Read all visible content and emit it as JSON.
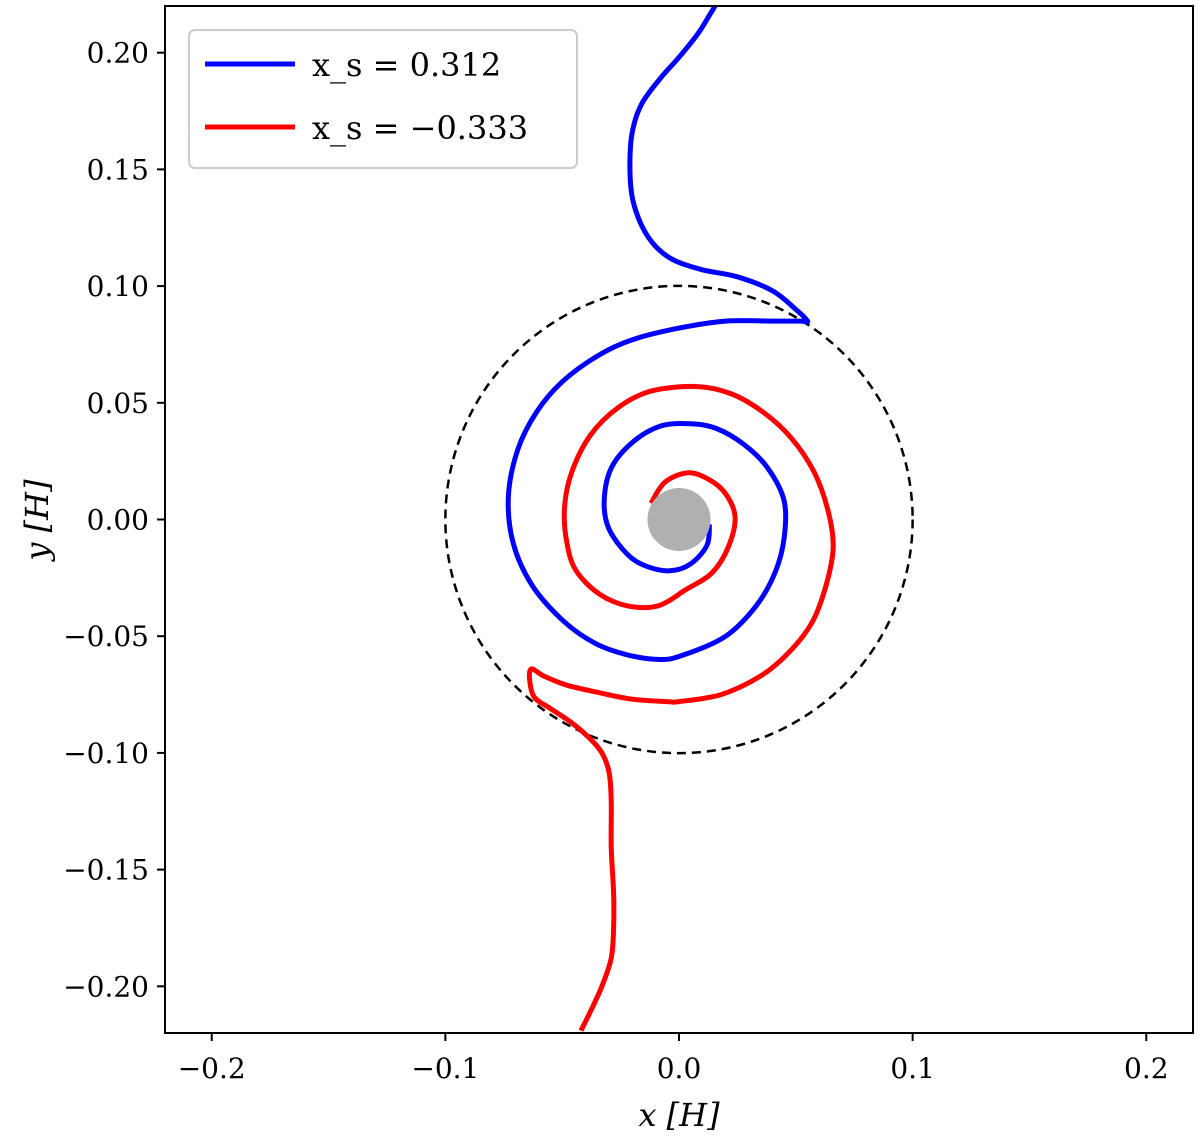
{
  "chart_data": {
    "type": "line",
    "xlabel": "x [H]",
    "ylabel": "y [H]",
    "xlim": [
      -0.22,
      0.22
    ],
    "ylim": [
      -0.22,
      0.22
    ],
    "xticks": [
      -0.2,
      -0.1,
      0.0,
      0.1,
      0.2
    ],
    "xtick_labels": [
      "−0.2",
      "−0.1",
      "0.0",
      "0.1",
      "0.2"
    ],
    "yticks": [
      0.2,
      0.15,
      0.1,
      0.05,
      0.0,
      -0.05,
      -0.1,
      -0.15,
      -0.2
    ],
    "ytick_labels": [
      "0.20",
      "0.15",
      "0.10",
      "0.05",
      "0.00",
      "−0.05",
      "−0.10",
      "−0.15",
      "−0.20"
    ],
    "grid": false,
    "legend_position": "top-left",
    "colors": {
      "blue": "#0000ff",
      "red": "#ff0000",
      "circle": "#000000",
      "disk": "#b0b0b0"
    },
    "legend": [
      {
        "label": "x_s = 0.312",
        "color": "#0000ff"
      },
      {
        "label": "x_s = −0.333",
        "color": "#ff0000"
      }
    ],
    "series": [
      {
        "name": "x_s = 0.312",
        "color": "#0000ff",
        "points": [
          [
            0.013,
            -0.002
          ],
          [
            0.012,
            -0.011
          ],
          [
            0.005,
            -0.019
          ],
          [
            -0.004,
            -0.022
          ],
          [
            -0.014,
            -0.02
          ],
          [
            -0.022,
            -0.015
          ],
          [
            -0.03,
            -0.004
          ],
          [
            -0.032,
            0.008
          ],
          [
            -0.029,
            0.022
          ],
          [
            -0.02,
            0.033
          ],
          [
            -0.008,
            0.04
          ],
          [
            0.005,
            0.041
          ],
          [
            0.016,
            0.039
          ],
          [
            0.028,
            0.032
          ],
          [
            0.038,
            0.022
          ],
          [
            0.045,
            0.008
          ],
          [
            0.045,
            -0.008
          ],
          [
            0.041,
            -0.023
          ],
          [
            0.033,
            -0.037
          ],
          [
            0.02,
            -0.05
          ],
          [
            0.002,
            -0.058
          ],
          [
            -0.008,
            -0.06
          ],
          [
            -0.022,
            -0.058
          ],
          [
            -0.036,
            -0.053
          ],
          [
            -0.05,
            -0.043
          ],
          [
            -0.063,
            -0.028
          ],
          [
            -0.071,
            -0.01
          ],
          [
            -0.073,
            0.01
          ],
          [
            -0.069,
            0.03
          ],
          [
            -0.061,
            0.046
          ],
          [
            -0.05,
            0.059
          ],
          [
            -0.035,
            0.07
          ],
          [
            -0.02,
            0.077
          ],
          [
            0.0,
            0.082
          ],
          [
            0.02,
            0.085
          ],
          [
            0.04,
            0.085
          ],
          [
            0.052,
            0.085
          ],
          [
            0.055,
            0.085
          ],
          [
            0.05,
            0.09
          ],
          [
            0.04,
            0.098
          ],
          [
            0.025,
            0.104
          ],
          [
            0.01,
            0.107
          ],
          [
            -0.002,
            0.111
          ],
          [
            -0.01,
            0.117
          ],
          [
            -0.016,
            0.126
          ],
          [
            -0.02,
            0.138
          ],
          [
            -0.021,
            0.152
          ],
          [
            -0.02,
            0.166
          ],
          [
            -0.016,
            0.178
          ],
          [
            -0.008,
            0.189
          ],
          [
            0.0,
            0.198
          ],
          [
            0.008,
            0.208
          ],
          [
            0.013,
            0.216
          ],
          [
            0.016,
            0.221
          ]
        ]
      },
      {
        "name": "x_s = −0.333",
        "color": "#ff0000",
        "points": [
          [
            -0.012,
            0.007
          ],
          [
            -0.006,
            0.016
          ],
          [
            0.004,
            0.02
          ],
          [
            0.013,
            0.017
          ],
          [
            0.02,
            0.011
          ],
          [
            0.024,
            0.001
          ],
          [
            0.021,
            -0.012
          ],
          [
            0.014,
            -0.023
          ],
          [
            0.003,
            -0.03
          ],
          [
            -0.009,
            -0.037
          ],
          [
            -0.022,
            -0.037
          ],
          [
            -0.034,
            -0.032
          ],
          [
            -0.044,
            -0.022
          ],
          [
            -0.048,
            -0.01
          ],
          [
            -0.049,
            0.005
          ],
          [
            -0.046,
            0.02
          ],
          [
            -0.038,
            0.036
          ],
          [
            -0.026,
            0.048
          ],
          [
            -0.012,
            0.055
          ],
          [
            0.007,
            0.057
          ],
          [
            0.022,
            0.054
          ],
          [
            0.036,
            0.046
          ],
          [
            0.048,
            0.035
          ],
          [
            0.058,
            0.02
          ],
          [
            0.064,
            0.003
          ],
          [
            0.066,
            -0.012
          ],
          [
            0.063,
            -0.028
          ],
          [
            0.057,
            -0.044
          ],
          [
            0.047,
            -0.057
          ],
          [
            0.035,
            -0.067
          ],
          [
            0.018,
            -0.075
          ],
          [
            0.0,
            -0.078
          ],
          [
            -0.005,
            -0.078
          ],
          [
            -0.02,
            -0.077
          ],
          [
            -0.035,
            -0.074
          ],
          [
            -0.048,
            -0.071
          ],
          [
            -0.058,
            -0.067
          ],
          [
            -0.063,
            -0.064
          ],
          [
            -0.064,
            -0.068
          ],
          [
            -0.062,
            -0.076
          ],
          [
            -0.055,
            -0.081
          ],
          [
            -0.046,
            -0.087
          ],
          [
            -0.038,
            -0.094
          ],
          [
            -0.033,
            -0.1
          ],
          [
            -0.03,
            -0.108
          ],
          [
            -0.029,
            -0.12
          ],
          [
            -0.029,
            -0.14
          ],
          [
            -0.028,
            -0.16
          ],
          [
            -0.028,
            -0.175
          ],
          [
            -0.029,
            -0.188
          ],
          [
            -0.033,
            -0.2
          ],
          [
            -0.038,
            -0.211
          ],
          [
            -0.042,
            -0.219
          ]
        ]
      }
    ],
    "annotations": [
      {
        "type": "dashed-circle",
        "center": [
          0,
          0
        ],
        "radius": 0.1
      },
      {
        "type": "filled-disk",
        "center": [
          0,
          0
        ],
        "radius": 0.0135
      }
    ]
  }
}
